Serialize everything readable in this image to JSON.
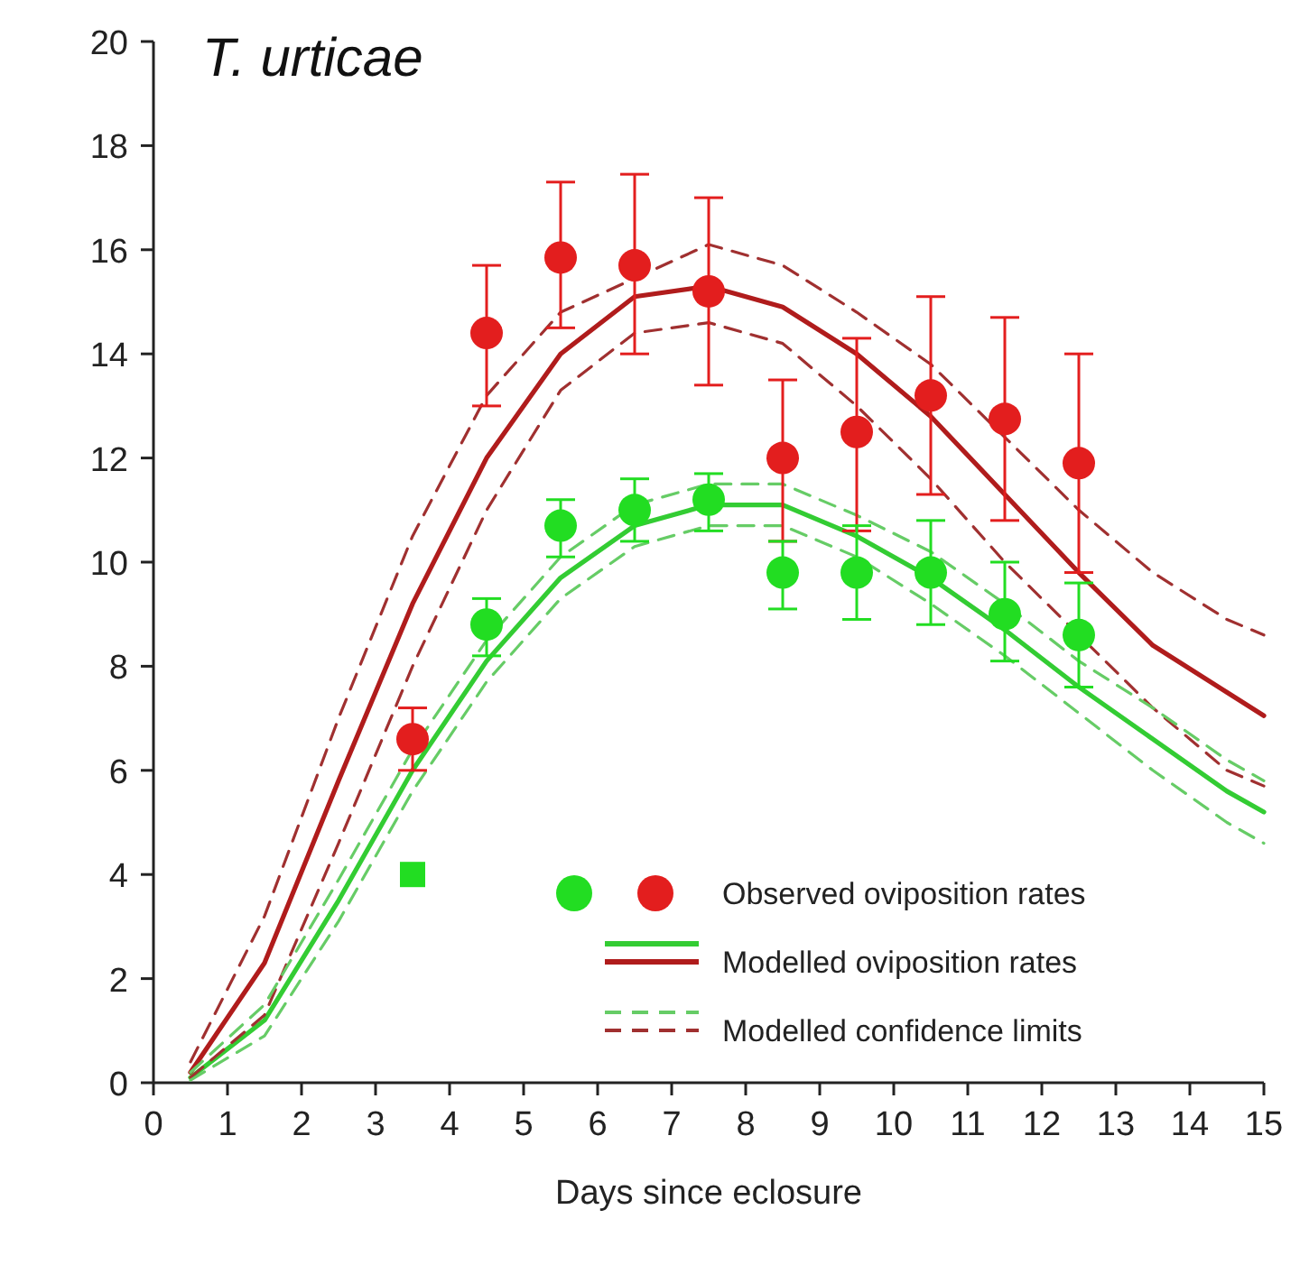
{
  "chart_data": {
    "type": "line",
    "title": "T. urticae",
    "xlabel": "Days since eclosure",
    "xlim": [
      0,
      15
    ],
    "xticks": [
      0,
      1,
      2,
      3,
      4,
      5,
      6,
      7,
      8,
      9,
      10,
      11,
      12,
      13,
      14,
      15
    ],
    "ylim": [
      0,
      20
    ],
    "yticks": [
      0,
      2,
      4,
      6,
      8,
      10,
      12,
      14,
      16,
      18,
      20
    ],
    "grid": false,
    "legend": "bottom right",
    "series": [
      {
        "type": "scatter",
        "name": "Observed oviposition rates",
        "color": "#e31e1e",
        "marker": "circle",
        "x": [
          3.5,
          4.5,
          5.5,
          6.5,
          7.5,
          8.5,
          9.5,
          10.5,
          11.5,
          12.5
        ],
        "values": [
          6.6,
          14.4,
          15.85,
          15.7,
          15.2,
          12.0,
          12.5,
          13.2,
          12.75,
          11.9
        ],
        "errors": [
          [
            6.0,
            7.2
          ],
          [
            13.0,
            15.7
          ],
          [
            14.5,
            17.3
          ],
          [
            14.0,
            17.45
          ],
          [
            13.4,
            17.0
          ],
          [
            10.4,
            13.5
          ],
          [
            10.6,
            14.3
          ],
          [
            11.3,
            15.1
          ],
          [
            10.8,
            14.7
          ],
          [
            9.8,
            14.0
          ]
        ]
      },
      {
        "type": "scatter",
        "color": "#22dd22",
        "marker": "circle",
        "x": [
          4.5,
          5.5,
          6.5,
          7.5,
          8.5,
          9.5,
          10.5,
          11.5,
          12.5
        ],
        "values": [
          8.8,
          10.7,
          11.0,
          11.2,
          9.8,
          9.8,
          9.8,
          9.0,
          8.6
        ],
        "errors": [
          [
            8.2,
            9.3
          ],
          [
            10.1,
            11.2
          ],
          [
            10.4,
            11.6
          ],
          [
            10.6,
            11.7
          ],
          [
            9.1,
            10.4
          ],
          [
            8.9,
            10.7
          ],
          [
            8.8,
            10.8
          ],
          [
            8.1,
            10.0
          ],
          [
            7.6,
            9.6
          ]
        ]
      },
      {
        "type": "scatter",
        "color": "#22dd22",
        "marker": "square",
        "x": [
          3.5
        ],
        "values": [
          4.0
        ]
      },
      {
        "name": "Modelled oviposition rates",
        "color": "#b01c1c",
        "line_style": "solid",
        "x": [
          0.5,
          1.5,
          2.5,
          3.5,
          4.5,
          5.5,
          6.5,
          7.5,
          8.5,
          9.5,
          10.5,
          11.5,
          12.5,
          13.5,
          14.5,
          15
        ],
        "values": [
          0.2,
          2.3,
          5.8,
          9.2,
          12.0,
          14.0,
          15.1,
          15.3,
          14.9,
          14.0,
          12.8,
          11.3,
          9.8,
          8.4,
          7.5,
          7.05
        ]
      },
      {
        "color": "#33cc33",
        "line_style": "solid",
        "x": [
          0.5,
          1.5,
          2.5,
          3.5,
          4.5,
          5.5,
          6.5,
          7.5,
          8.5,
          9.5,
          10.5,
          11.5,
          12.5,
          13.5,
          14.5,
          15
        ],
        "values": [
          0.1,
          1.2,
          3.5,
          6.0,
          8.1,
          9.7,
          10.7,
          11.1,
          11.1,
          10.5,
          9.7,
          8.7,
          7.6,
          6.6,
          5.6,
          5.2
        ]
      },
      {
        "name": "Modelled confidence limits",
        "color": "#a03030",
        "line_style": "dashed",
        "x": [
          0.5,
          1.5,
          2.5,
          3.5,
          4.5,
          5.5,
          6.5,
          7.5,
          8.5,
          9.5,
          10.5,
          11.5,
          12.5,
          13.5,
          14.5,
          15
        ],
        "values": [
          0.4,
          3.2,
          7.0,
          10.5,
          13.2,
          14.8,
          null,
          16.1,
          15.7,
          14.8,
          13.8,
          12.4,
          11.0,
          9.8,
          8.9,
          8.6
        ]
      },
      {
        "color": "#a03030",
        "line_style": "dashed",
        "x": [
          0.5,
          1.5,
          2.5,
          3.5,
          4.5,
          5.5,
          6.5,
          7.5,
          8.5,
          9.5,
          10.5,
          11.5,
          12.5,
          13.5,
          14.5,
          15
        ],
        "values": [
          0.1,
          1.3,
          4.6,
          8.0,
          11.0,
          13.3,
          14.4,
          14.6,
          14.2,
          13.0,
          11.6,
          10.0,
          8.6,
          7.2,
          6.0,
          5.7
        ]
      },
      {
        "color": "#66cc66",
        "line_style": "dashed",
        "x": [
          0.5,
          1.5,
          2.5,
          3.5,
          4.5,
          5.5,
          6.5,
          7.5,
          8.5,
          9.5,
          10.5,
          11.5,
          12.5,
          13.5,
          14.5,
          15
        ],
        "values": [
          0.2,
          1.5,
          3.9,
          6.4,
          8.5,
          10.1,
          11.1,
          11.5,
          11.5,
          10.9,
          10.2,
          9.2,
          8.1,
          7.2,
          6.2,
          5.8
        ]
      },
      {
        "color": "#66cc66",
        "line_style": "dashed",
        "x": [
          0.5,
          1.5,
          2.5,
          3.5,
          4.5,
          5.5,
          6.5,
          7.5,
          8.5,
          9.5,
          10.5,
          11.5,
          12.5,
          13.5,
          14.5,
          15
        ],
        "values": [
          0.05,
          0.9,
          3.1,
          5.6,
          7.7,
          9.3,
          10.3,
          10.7,
          10.7,
          10.1,
          9.2,
          8.2,
          7.1,
          6.0,
          5.0,
          4.6
        ]
      }
    ]
  }
}
